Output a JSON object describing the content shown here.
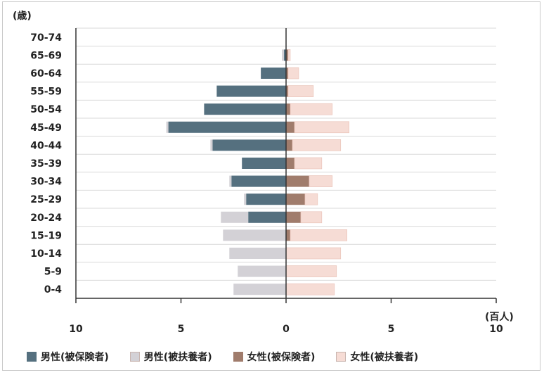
{
  "chart_data": {
    "type": "bar",
    "orientation": "horizontal",
    "stacked": true,
    "title": "",
    "y_unit_label": "(歳)",
    "x_unit_label": "(百人)",
    "categories": [
      "70-74",
      "65-69",
      "60-64",
      "55-59",
      "50-54",
      "45-49",
      "40-44",
      "35-39",
      "30-34",
      "25-29",
      "20-24",
      "15-19",
      "10-14",
      "5-9",
      "0-4"
    ],
    "x_ticks": [
      {
        "value": -10,
        "label": "10"
      },
      {
        "value": -5,
        "label": "5"
      },
      {
        "value": 0,
        "label": "0"
      },
      {
        "value": 5,
        "label": "5"
      },
      {
        "value": 10,
        "label": "10"
      }
    ],
    "xlim": [
      -10,
      10
    ],
    "grid": true,
    "legend_position": "bottom",
    "series": [
      {
        "name": "男性(被保険者)",
        "side": "left",
        "color": "#55707f",
        "values": [
          0,
          0.1,
          1.2,
          3.3,
          3.9,
          5.6,
          3.5,
          2.1,
          2.6,
          1.9,
          1.8,
          0,
          0,
          0,
          0
        ]
      },
      {
        "name": "男性(被扶養者)",
        "side": "left",
        "color": "#d3d1d6",
        "values": [
          0,
          0.1,
          0,
          0,
          0,
          0.1,
          0.1,
          0,
          0.1,
          0.1,
          1.3,
          3.0,
          2.7,
          2.3,
          2.5
        ]
      },
      {
        "name": "女性(被保険者)",
        "side": "right",
        "color": "#a07c6c",
        "values": [
          0,
          0.1,
          0.1,
          0.1,
          0.2,
          0.4,
          0.3,
          0.4,
          1.1,
          0.9,
          0.7,
          0.2,
          0,
          0,
          0
        ]
      },
      {
        "name": "女性(被扶養者)",
        "side": "right",
        "color": "#f6dcd5",
        "values": [
          0,
          0.1,
          0.5,
          1.2,
          2.0,
          2.6,
          2.3,
          1.3,
          1.1,
          0.6,
          1.0,
          2.7,
          2.6,
          2.4,
          2.3
        ]
      }
    ]
  }
}
